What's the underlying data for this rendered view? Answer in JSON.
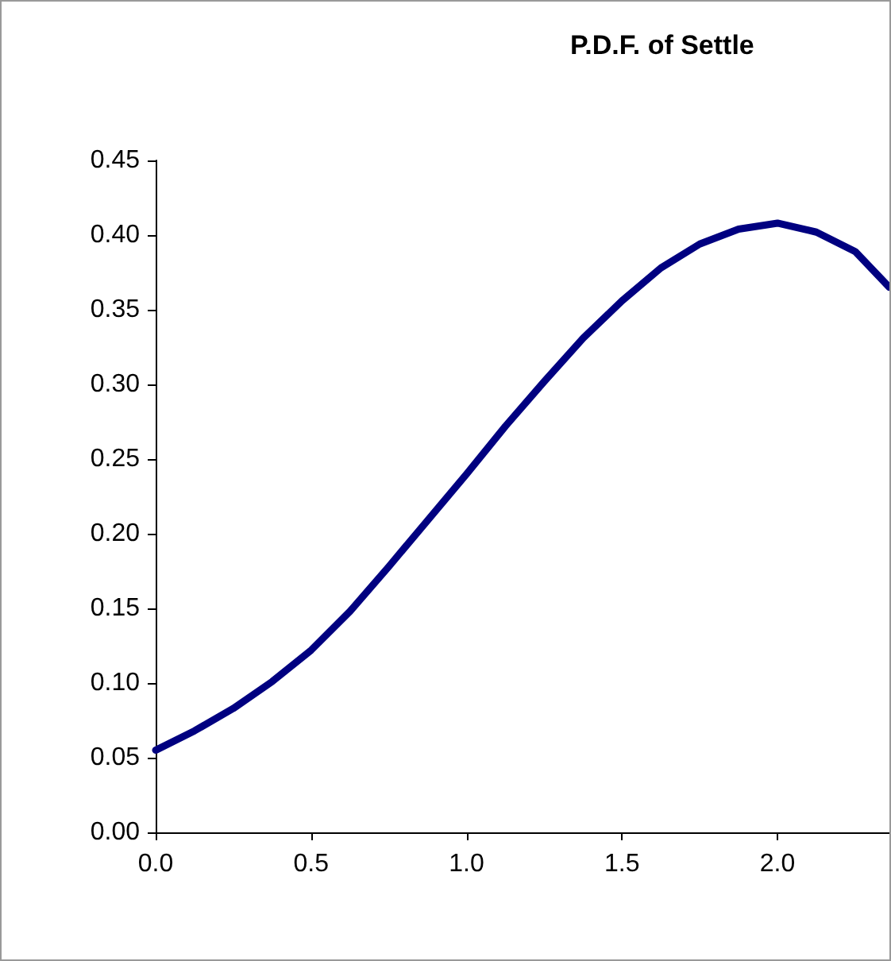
{
  "chart_data": {
    "type": "line",
    "title": "P.D.F. of Settle",
    "x": [
      0,
      0.125,
      0.25,
      0.375,
      0.5,
      0.625,
      0.75,
      0.875,
      1.0,
      1.125,
      1.25,
      1.375,
      1.5,
      1.625,
      1.75,
      1.875,
      2.0,
      2.125,
      2.25,
      2.36
    ],
    "series": [
      {
        "color": "#000080",
        "values": [
          0.055,
          0.068,
          0.083,
          0.101,
          0.122,
          0.148,
          0.178,
          0.209,
          0.24,
          0.272,
          0.302,
          0.331,
          0.356,
          0.378,
          0.394,
          0.404,
          0.408,
          0.402,
          0.389,
          0.365
        ]
      }
    ],
    "xlim": [
      0,
      2.36
    ],
    "xticks": [
      {
        "value": 0,
        "label": "0.0"
      },
      {
        "value": 0.5,
        "label": "0.5"
      },
      {
        "value": 1,
        "label": "1.0"
      },
      {
        "value": 1.5,
        "label": "1.5"
      },
      {
        "value": 2,
        "label": "2.0"
      }
    ],
    "ylim": [
      0,
      0.45
    ],
    "yticks": [
      {
        "value": 0,
        "label": "0.00"
      },
      {
        "value": 0.05,
        "label": "0.05"
      },
      {
        "value": 0.1,
        "label": "0.10"
      },
      {
        "value": 0.15,
        "label": "0.15"
      },
      {
        "value": 0.2,
        "label": "0.20"
      },
      {
        "value": 0.25,
        "label": "0.25"
      },
      {
        "value": 0.3,
        "label": "0.30"
      },
      {
        "value": 0.35,
        "label": "0.35"
      },
      {
        "value": 0.4,
        "label": "0.40"
      },
      {
        "value": 0.45,
        "label": "0.45"
      }
    ],
    "grid": false,
    "marker": "none",
    "line_style": "solid"
  }
}
